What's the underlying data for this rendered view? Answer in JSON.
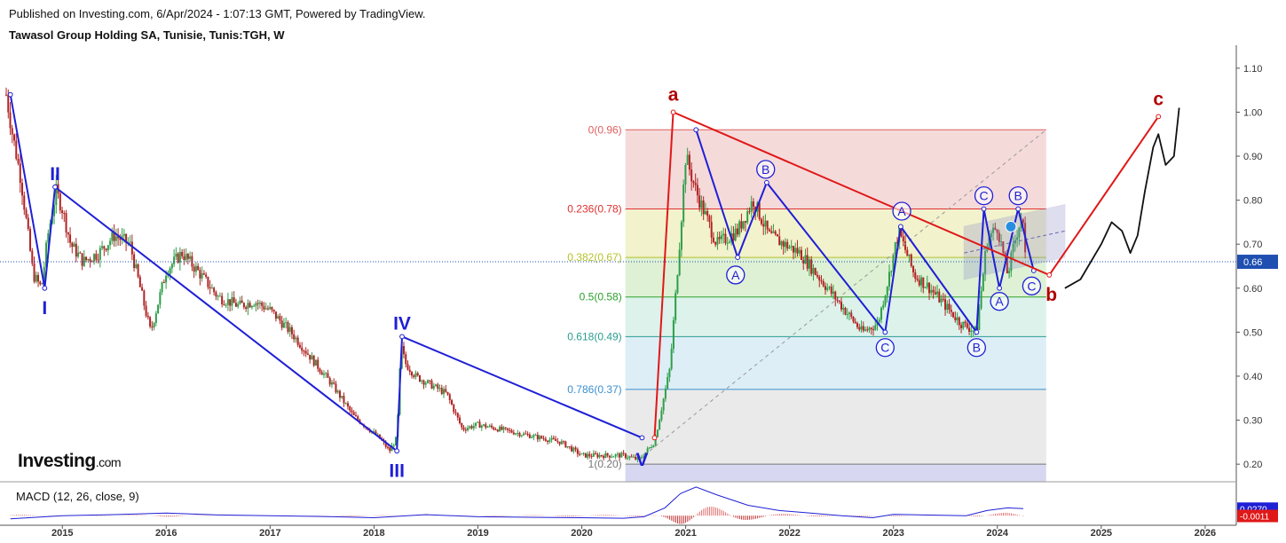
{
  "header": {
    "published": "Published on Investing.com, 6/Apr/2024 - 1:07:13 GMT, Powered by TradingView.",
    "symbol": "Tawasol Group Holding SA, Tunisie, Tunis:TGH, W"
  },
  "logo": {
    "main": "Investing",
    "suffix": ".com"
  },
  "colors": {
    "wave_blue": "#1f1fd6",
    "wave_red": "#e01818",
    "label_red": "#b10000",
    "price_line": "#1f4fb0",
    "up_candle": "#2e9e4a",
    "down_candle": "#b22222"
  },
  "chart_data": [
    {
      "type": "line",
      "title": "",
      "ylim": [
        0.16,
        1.14
      ],
      "xlim": [
        2014.4,
        2026.3
      ],
      "x_ticks": [
        {
          "label": "2015",
          "x": 2015.0
        },
        {
          "label": "2016",
          "x": 2016.0
        },
        {
          "label": "2017",
          "x": 2017.0
        },
        {
          "label": "2018",
          "x": 2018.0
        },
        {
          "label": "2019",
          "x": 2019.0
        },
        {
          "label": "2020",
          "x": 2020.0
        },
        {
          "label": "2021",
          "x": 2021.0
        },
        {
          "label": "2022",
          "x": 2022.0
        },
        {
          "label": "2023",
          "x": 2023.0
        },
        {
          "label": "2024",
          "x": 2024.0
        },
        {
          "label": "2025",
          "x": 2025.0
        },
        {
          "label": "2026",
          "x": 2026.0
        }
      ],
      "y_ticks": [
        {
          "label": "1.10",
          "v": 1.1
        },
        {
          "label": "1.00",
          "v": 1.0
        },
        {
          "label": "0.90",
          "v": 0.9
        },
        {
          "label": "0.80",
          "v": 0.8
        },
        {
          "label": "0.70",
          "v": 0.7
        },
        {
          "label": "0.60",
          "v": 0.6
        },
        {
          "label": "0.50",
          "v": 0.5
        },
        {
          "label": "0.40",
          "v": 0.4
        },
        {
          "label": "0.30",
          "v": 0.3
        },
        {
          "label": "0.20",
          "v": 0.2
        }
      ],
      "last_price": {
        "label": "0.66",
        "v": 0.66
      },
      "price_series": {
        "name": "",
        "x": [
          2014.46,
          2014.52,
          2014.6,
          2014.66,
          2014.72,
          2014.8,
          2014.86,
          2014.94,
          2015.0,
          2015.08,
          2015.2,
          2015.35,
          2015.5,
          2015.65,
          2015.75,
          2015.85,
          2016.0,
          2016.15,
          2016.3,
          2016.5,
          2016.7,
          2016.85,
          2017.0,
          2017.2,
          2017.4,
          2017.6,
          2017.8,
          2017.95,
          2018.05,
          2018.15,
          2018.22,
          2018.26,
          2018.3,
          2018.4,
          2018.55,
          2018.7,
          2018.85,
          2019.0,
          2019.2,
          2019.4,
          2019.6,
          2019.8,
          2020.0,
          2020.2,
          2020.4,
          2020.55,
          2020.7,
          2020.85,
          2020.95,
          2021.0,
          2021.1,
          2021.2,
          2021.3,
          2021.5,
          2021.65,
          2021.8,
          2021.95,
          2022.1,
          2022.3,
          2022.5,
          2022.7,
          2022.85,
          2022.95,
          2023.05,
          2023.2,
          2023.35,
          2023.5,
          2023.65,
          2023.8,
          2023.9,
          2024.0,
          2024.1,
          2024.17,
          2024.24,
          2024.27
        ],
        "values": [
          1.04,
          0.95,
          0.85,
          0.74,
          0.63,
          0.6,
          0.72,
          0.82,
          0.78,
          0.7,
          0.66,
          0.68,
          0.72,
          0.7,
          0.6,
          0.5,
          0.64,
          0.68,
          0.64,
          0.58,
          0.56,
          0.57,
          0.55,
          0.5,
          0.44,
          0.38,
          0.31,
          0.28,
          0.26,
          0.23,
          0.26,
          0.47,
          0.43,
          0.4,
          0.38,
          0.36,
          0.28,
          0.29,
          0.28,
          0.27,
          0.26,
          0.25,
          0.22,
          0.22,
          0.22,
          0.21,
          0.25,
          0.42,
          0.73,
          0.9,
          0.82,
          0.76,
          0.7,
          0.73,
          0.8,
          0.72,
          0.7,
          0.68,
          0.62,
          0.56,
          0.5,
          0.52,
          0.62,
          0.73,
          0.63,
          0.6,
          0.56,
          0.52,
          0.5,
          0.71,
          0.74,
          0.63,
          0.71,
          0.77,
          0.66
        ]
      },
      "fibonacci": {
        "x_range": [
          2020.42,
          2024.47
        ],
        "levels": [
          {
            "label": "0(0.96)",
            "v": 0.96,
            "color": "#e06060",
            "fill": "#f3d3d3"
          },
          {
            "label": "0.236(0.78)",
            "v": 0.78,
            "color": "#e03030",
            "fill": "#f0f0c4"
          },
          {
            "label": "0.382(0.67)",
            "v": 0.67,
            "color": "#b7c02a",
            "fill": "#d8efcc"
          },
          {
            "label": "0.5(0.58)",
            "v": 0.58,
            "color": "#2ca02c",
            "fill": "#d6f0e8"
          },
          {
            "label": "0.618(0.49)",
            "v": 0.49,
            "color": "#2a9d8f",
            "fill": "#d7ebf4"
          },
          {
            "label": "0.786(0.37)",
            "v": 0.37,
            "color": "#3a8fd0",
            "fill": "#e6e6e6"
          },
          {
            "label": "1(0.20)",
            "v": 0.2,
            "color": "#777777",
            "fill": "#d0d0ee"
          }
        ],
        "bottom_fill_to": 0.16
      },
      "blue_wave": {
        "x": [
          2014.5,
          2014.83,
          2014.93,
          2018.22,
          2018.27,
          2020.58
        ],
        "values": [
          1.04,
          0.6,
          0.83,
          0.23,
          0.49,
          0.26
        ]
      },
      "red_wave": {
        "x": [
          2020.7,
          2020.88,
          2024.5,
          2025.55
        ],
        "values": [
          0.26,
          1.0,
          0.63,
          0.99
        ]
      },
      "abc_blue_1": {
        "x": [
          2021.1,
          2021.5,
          2021.78,
          2022.92,
          2023.07,
          2023.8,
          2023.87,
          2024.02,
          2024.2,
          2024.35
        ],
        "values": [
          0.96,
          0.67,
          0.84,
          0.5,
          0.74,
          0.5,
          0.78,
          0.6,
          0.78,
          0.64
        ]
      },
      "dashed_diag": {
        "x": [
          2020.6,
          2024.47
        ],
        "values": [
          0.22,
          0.96
        ]
      },
      "projection_curve": {
        "x": [
          2024.65,
          2024.8,
          2025.0,
          2025.1,
          2025.2,
          2025.28,
          2025.35,
          2025.42,
          2025.5,
          2025.55,
          2025.62,
          2025.7,
          2025.75
        ],
        "values": [
          0.6,
          0.62,
          0.7,
          0.75,
          0.73,
          0.68,
          0.72,
          0.82,
          0.92,
          0.95,
          0.88,
          0.9,
          1.01
        ]
      },
      "triangle": {
        "x": [
          2023.68,
          2024.65,
          2024.65,
          2023.68
        ],
        "values": [
          0.74,
          0.79,
          0.67,
          0.62
        ]
      },
      "wave_labels": [
        {
          "text": "I",
          "x": 2014.83,
          "v": 0.555,
          "color": "blue",
          "circled": false
        },
        {
          "text": "II",
          "x": 2014.93,
          "v": 0.86,
          "color": "blue",
          "circled": false
        },
        {
          "text": "III",
          "x": 2018.22,
          "v": 0.185,
          "color": "blue",
          "circled": false
        },
        {
          "text": "IV",
          "x": 2018.27,
          "v": 0.52,
          "color": "blue",
          "circled": false
        },
        {
          "text": "V",
          "x": 2020.58,
          "v": 0.21,
          "color": "blue",
          "circled": false
        },
        {
          "text": "a",
          "x": 2020.88,
          "v": 1.04,
          "color": "red",
          "circled": false
        },
        {
          "text": "b",
          "x": 2024.52,
          "v": 0.585,
          "color": "red",
          "circled": false
        },
        {
          "text": "c",
          "x": 2025.55,
          "v": 1.03,
          "color": "red",
          "circled": false
        },
        {
          "text": "A",
          "x": 2021.48,
          "v": 0.63,
          "color": "blue",
          "circled": true
        },
        {
          "text": "B",
          "x": 2021.77,
          "v": 0.87,
          "color": "blue",
          "circled": true
        },
        {
          "text": "C",
          "x": 2022.92,
          "v": 0.465,
          "color": "blue",
          "circled": true
        },
        {
          "text": "A",
          "x": 2023.08,
          "v": 0.775,
          "color": "blue",
          "circled": true
        },
        {
          "text": "B",
          "x": 2023.8,
          "v": 0.465,
          "color": "blue",
          "circled": true
        },
        {
          "text": "C",
          "x": 2023.87,
          "v": 0.81,
          "color": "blue",
          "circled": true
        },
        {
          "text": "A",
          "x": 2024.02,
          "v": 0.57,
          "color": "blue",
          "circled": true
        },
        {
          "text": "B",
          "x": 2024.2,
          "v": 0.81,
          "color": "blue",
          "circled": true
        },
        {
          "text": "C",
          "x": 2024.33,
          "v": 0.605,
          "color": "blue",
          "circled": true
        }
      ]
    },
    {
      "type": "line",
      "title": "MACD (12, 26, close, 9)",
      "ylim": [
        -0.03,
        0.12
      ],
      "macd_line": {
        "x": [
          2014.5,
          2015.0,
          2015.5,
          2016.0,
          2016.5,
          2017.0,
          2017.5,
          2018.0,
          2018.5,
          2019.0,
          2019.5,
          2020.0,
          2020.4,
          2020.6,
          2020.8,
          2020.95,
          2021.1,
          2021.3,
          2021.6,
          2021.9,
          2022.2,
          2022.5,
          2022.8,
          2023.0,
          2023.4,
          2023.7,
          2023.9,
          2024.1,
          2024.25
        ],
        "values": [
          -0.012,
          0.0,
          0.004,
          0.01,
          0.003,
          0.0,
          -0.003,
          -0.008,
          0.004,
          -0.004,
          -0.006,
          -0.008,
          -0.01,
          -0.004,
          0.03,
          0.085,
          0.11,
          0.08,
          0.04,
          0.02,
          0.01,
          0.0,
          -0.008,
          0.005,
          0.002,
          0.0,
          0.02,
          0.03,
          0.027
        ]
      },
      "value_labels": [
        {
          "label": "0.0270",
          "v": 0.027,
          "color": "#1f1fd6"
        },
        {
          "label": "-0.0011",
          "v": -0.0011,
          "color": "#e01818"
        }
      ]
    }
  ]
}
